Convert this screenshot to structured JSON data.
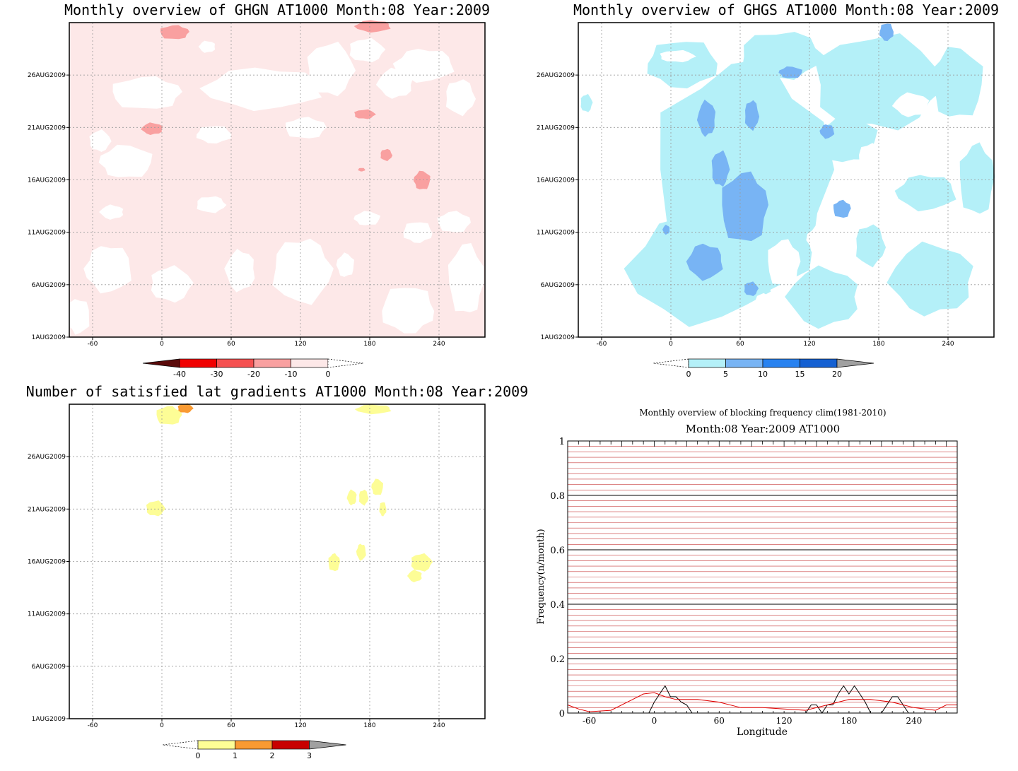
{
  "chart_data": [
    {
      "type": "heatmap",
      "title": "Monthly overview of GHGN AT1000 Month:08 Year:2009",
      "x_ticks": [
        "-60",
        "0",
        "60",
        "120",
        "180",
        "240"
      ],
      "y_ticks": [
        "1AUG2009",
        "6AUG2009",
        "11AUG2009",
        "16AUG2009",
        "21AUG2009",
        "26AUG2009"
      ],
      "x_range": [
        -80,
        280
      ],
      "y_range_days": [
        1,
        31
      ],
      "colorbar": {
        "labels": [
          "-40",
          "-30",
          "-20",
          "-10",
          "0"
        ],
        "colors": [
          "#5a0a0a",
          "#f00000",
          "#f55050",
          "#f9a0a0",
          "#fde8e8"
        ]
      },
      "fill_color": "#fde8e8",
      "highlight_color": "#f9a0a0",
      "grid": true
    },
    {
      "type": "heatmap",
      "title": "Monthly overview of GHGS AT1000 Month:08 Year:2009",
      "x_ticks": [
        "-60",
        "0",
        "60",
        "120",
        "180",
        "240"
      ],
      "y_ticks": [
        "1AUG2009",
        "6AUG2009",
        "11AUG2009",
        "16AUG2009",
        "21AUG2009",
        "26AUG2009"
      ],
      "x_range": [
        -80,
        280
      ],
      "y_range_days": [
        1,
        31
      ],
      "colorbar": {
        "labels": [
          "0",
          "5",
          "10",
          "15",
          "20"
        ],
        "colors": [
          "#b4f0f8",
          "#78b4f4",
          "#2882f0",
          "#1460d2",
          "#a0a0a0"
        ]
      },
      "fill_color": "#b4f0f8",
      "highlight_color": "#78b4f4",
      "grid": true
    },
    {
      "type": "heatmap",
      "title": "Number of satisfied lat gradients AT1000 Month:08 Year:2009",
      "x_ticks": [
        "-60",
        "0",
        "60",
        "120",
        "180",
        "240"
      ],
      "y_ticks": [
        "1AUG2009",
        "6AUG2009",
        "11AUG2009",
        "16AUG2009",
        "21AUG2009",
        "26AUG2009"
      ],
      "x_range": [
        -80,
        280
      ],
      "y_range_days": [
        1,
        31
      ],
      "colorbar": {
        "labels": [
          "0",
          "1",
          "2",
          "3"
        ],
        "colors": [
          "#fdfd96",
          "#f99a32",
          "#c80000",
          "#a0a0a0"
        ]
      },
      "grid": true
    },
    {
      "type": "line",
      "title": "Monthly overview of blocking frequency clim(1981-2010)",
      "subtitle": "Month:08 Year:2009  AT1000",
      "xlabel": "Longitude",
      "ylabel": "Frequency(n/month)",
      "x_ticks": [
        "-60",
        "0",
        "60",
        "120",
        "180",
        "240"
      ],
      "y_ticks": [
        "0",
        "0.2",
        "0.4",
        "0.6",
        "0.8",
        "1"
      ],
      "xlim": [
        -80,
        280
      ],
      "ylim": [
        0,
        1
      ],
      "series": [
        {
          "color": "#000000",
          "x": [
            -80,
            -5,
            0,
            5,
            10,
            15,
            20,
            25,
            30,
            35,
            140,
            145,
            150,
            155,
            160,
            165,
            170,
            175,
            180,
            185,
            190,
            195,
            200,
            205,
            210,
            215,
            220,
            225,
            230,
            235,
            280
          ],
          "y": [
            0,
            0,
            0.04,
            0.07,
            0.1,
            0.06,
            0.06,
            0.04,
            0.03,
            0,
            0,
            0.03,
            0.03,
            0,
            0.03,
            0.03,
            0.07,
            0.1,
            0.07,
            0.1,
            0.07,
            0.04,
            0,
            0,
            0,
            0.03,
            0.06,
            0.06,
            0.03,
            0,
            0
          ]
        },
        {
          "color": "#e00000",
          "x": [
            -80,
            -70,
            -60,
            -40,
            -20,
            -10,
            0,
            10,
            20,
            40,
            60,
            80,
            100,
            120,
            140,
            160,
            180,
            200,
            220,
            240,
            260,
            270,
            280
          ],
          "y": [
            0.03,
            0.015,
            0.005,
            0.01,
            0.05,
            0.07,
            0.075,
            0.06,
            0.05,
            0.05,
            0.04,
            0.02,
            0.02,
            0.015,
            0.01,
            0.03,
            0.05,
            0.05,
            0.04,
            0.02,
            0.01,
            0.03,
            0.03
          ]
        }
      ],
      "minor_gridline_color": "#c83c3c",
      "grid": true
    }
  ]
}
